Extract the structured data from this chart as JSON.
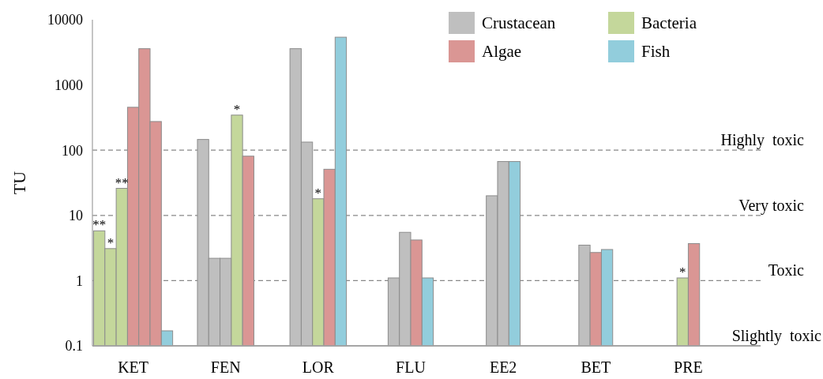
{
  "chart_data": {
    "type": "bar",
    "ylabel": "TU",
    "categories": [
      "KET",
      "FEN",
      "LOR",
      "FLU",
      "EE2",
      "BET",
      "PRE"
    ],
    "log": true,
    "ylim": [
      0.1,
      10000
    ],
    "yticks": [
      0.1,
      1,
      10,
      100,
      1000,
      10000
    ],
    "legend": "top right",
    "series": [
      {
        "name": "Crustacean",
        "color": "#bfbfbf",
        "values": [
          null,
          146,
          3600,
          1.1,
          20,
          3.5,
          null
        ]
      },
      {
        "color": "#bfbfbf",
        "values": [
          null,
          2.2,
          133,
          5.5,
          67,
          null,
          null
        ]
      },
      {
        "color": "#bfbfbf",
        "values": [
          null,
          2.2,
          null,
          null,
          null,
          null,
          null
        ]
      },
      {
        "name": "Bacteria",
        "color": "#c4d79b",
        "values": [
          5.8,
          345,
          18,
          null,
          null,
          null,
          1.1
        ],
        "value_labels": [
          "**",
          "*",
          "*",
          null,
          null,
          null,
          "*"
        ]
      },
      {
        "color": "#c4d79b",
        "values": [
          3.1,
          null,
          null,
          null,
          null,
          null,
          null
        ],
        "value_labels": [
          "*",
          null,
          null,
          null,
          null,
          null,
          null
        ]
      },
      {
        "color": "#c4d79b",
        "values": [
          26,
          null,
          null,
          null,
          null,
          null,
          null
        ],
        "value_labels": [
          "**",
          null,
          null,
          null,
          null,
          null,
          null
        ]
      },
      {
        "name": "Algae",
        "color": "#da9694",
        "values": [
          455,
          81,
          51,
          4.2,
          null,
          2.7,
          3.7
        ]
      },
      {
        "color": "#da9694",
        "values": [
          3600,
          null,
          null,
          null,
          null,
          null,
          null
        ]
      },
      {
        "color": "#da9694",
        "values": [
          275,
          null,
          null,
          null,
          null,
          null,
          null
        ]
      },
      {
        "name": "Fish",
        "color": "#92cddc",
        "values": [
          0.17,
          null,
          5400,
          1.1,
          67,
          3.0,
          null
        ]
      }
    ],
    "ref_lines": [
      {
        "axis": "y",
        "value": 100,
        "label": "Highly  toxic",
        "line_style": "dashed"
      },
      {
        "axis": "y",
        "value": 10,
        "label": "Very toxic",
        "line_style": "dashed"
      },
      {
        "axis": "y",
        "value": 1,
        "label": "Toxic",
        "line_style": "dashed"
      },
      {
        "axis": "y",
        "value": 0.1,
        "label": "Slightly  toxic",
        "line_style": "solid"
      }
    ]
  }
}
